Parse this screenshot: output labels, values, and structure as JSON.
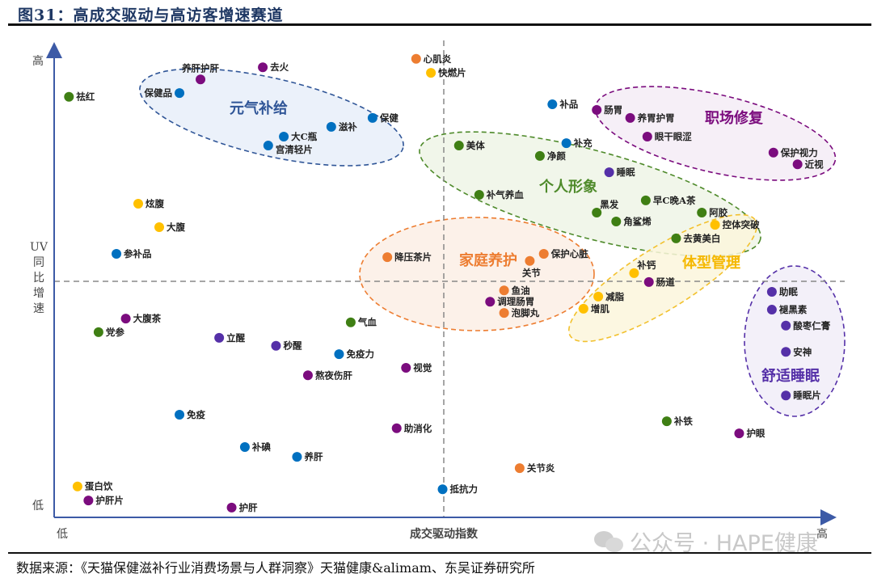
{
  "title": "图31：高成交驱动与高访客增速赛道",
  "source": "数据来源：《天猫保健滋补行业消费场景与人群洞察》天猫健康&alimam、东吴证券研究所",
  "watermark": "公众号 · HAPE健康",
  "chart_data": {
    "type": "scatter",
    "title": "高成交驱动与高访客增速赛道",
    "xlabel": "成交驱动指数",
    "ylabel": "UV同比增速",
    "x_low": "低",
    "x_high": "高",
    "y_low": "低",
    "y_high": "高",
    "xlim": [
      0,
      100
    ],
    "ylim": [
      0,
      100
    ],
    "quadrant_divider": {
      "x": 50,
      "y": 50
    },
    "colors": {
      "blue": "#0070c0",
      "purple": "#7b0c7e",
      "green": "#3f7f14",
      "orange": "#ed7d31",
      "yellow": "#ffc000",
      "indigo": "#5530a8"
    },
    "clusters": [
      {
        "id": "yuanqi",
        "name": "元气补给",
        "color": "#2f5597",
        "fill": "#e8eff9"
      },
      {
        "id": "zhichang",
        "name": "职场修复",
        "color": "#7b0c7e",
        "fill": "#f4ecf6"
      },
      {
        "id": "geren",
        "name": "个人形象",
        "color": "#4e8a2a",
        "fill": "#eef5e6"
      },
      {
        "id": "jiating",
        "name": "家庭养护",
        "color": "#ed7d31",
        "fill": "#fbeee5"
      },
      {
        "id": "tixing",
        "name": "体型管理",
        "color": "#f2c12e",
        "fill": "#fcf6dc"
      },
      {
        "id": "shuimian",
        "name": "舒适睡眠",
        "color": "#5530a8",
        "fill": "#f1edf8"
      }
    ],
    "points": [
      {
        "label": "祛红",
        "x": 1.9,
        "y": 89.7,
        "color": "green",
        "pos": "right"
      },
      {
        "label": "养肝护肝",
        "x": 18.8,
        "y": 93.4,
        "color": "purple",
        "pos": "above"
      },
      {
        "label": "去火",
        "x": 26.8,
        "y": 96.0,
        "color": "purple",
        "pos": "right"
      },
      {
        "label": "保健品",
        "x": 16.1,
        "y": 90.5,
        "color": "blue",
        "pos": "left"
      },
      {
        "label": "大C瓶",
        "x": 29.5,
        "y": 81.2,
        "color": "blue",
        "pos": "right"
      },
      {
        "label": "宫清轻片",
        "x": 27.5,
        "y": 79.3,
        "color": "blue",
        "pos": "right-low"
      },
      {
        "label": "滋补",
        "x": 35.6,
        "y": 83.3,
        "color": "blue",
        "pos": "right"
      },
      {
        "label": "保健",
        "x": 40.9,
        "y": 85.2,
        "color": "blue",
        "pos": "right"
      },
      {
        "label": "心肌炎",
        "x": 46.5,
        "y": 97.8,
        "color": "orange",
        "pos": "right"
      },
      {
        "label": "快燃片",
        "x": 48.4,
        "y": 94.8,
        "color": "yellow",
        "pos": "right"
      },
      {
        "label": "炫腹",
        "x": 10.8,
        "y": 66.9,
        "color": "yellow",
        "pos": "right"
      },
      {
        "label": "大腹",
        "x": 13.5,
        "y": 61.9,
        "color": "yellow",
        "pos": "right"
      },
      {
        "label": "参补品",
        "x": 8.0,
        "y": 56.2,
        "color": "blue",
        "pos": "right"
      },
      {
        "label": "补品",
        "x": 64.0,
        "y": 88.1,
        "color": "blue",
        "pos": "right"
      },
      {
        "label": "肠胃",
        "x": 69.7,
        "y": 86.9,
        "color": "purple",
        "pos": "right"
      },
      {
        "label": "养胃护胃",
        "x": 74.0,
        "y": 85.2,
        "color": "purple",
        "pos": "right"
      },
      {
        "label": "眼干眼涩",
        "x": 76.2,
        "y": 81.2,
        "color": "purple",
        "pos": "right"
      },
      {
        "label": "保护视力",
        "x": 92.4,
        "y": 77.8,
        "color": "purple",
        "pos": "right"
      },
      {
        "label": "近视",
        "x": 95.5,
        "y": 75.3,
        "color": "purple",
        "pos": "right"
      },
      {
        "label": "美体",
        "x": 52.0,
        "y": 79.3,
        "color": "green",
        "pos": "right"
      },
      {
        "label": "净颜",
        "x": 62.4,
        "y": 77.1,
        "color": "green",
        "pos": "right"
      },
      {
        "label": "补充",
        "x": 65.8,
        "y": 79.8,
        "color": "blue",
        "pos": "right"
      },
      {
        "label": "睡眠",
        "x": 71.3,
        "y": 73.6,
        "color": "indigo",
        "pos": "right"
      },
      {
        "label": "补气养血",
        "x": 54.6,
        "y": 68.8,
        "color": "green",
        "pos": "right"
      },
      {
        "label": "黑发",
        "x": 69.7,
        "y": 65.0,
        "color": "green",
        "pos": "above-right"
      },
      {
        "label": "角鲨烯",
        "x": 72.2,
        "y": 63.1,
        "color": "green",
        "pos": "right"
      },
      {
        "label": "早C晚A茶",
        "x": 76.0,
        "y": 67.6,
        "color": "green",
        "pos": "right"
      },
      {
        "label": "阿胶",
        "x": 83.2,
        "y": 65.0,
        "color": "green",
        "pos": "right"
      },
      {
        "label": "控体突破",
        "x": 84.9,
        "y": 62.4,
        "color": "yellow",
        "pos": "right"
      },
      {
        "label": "去黄美白",
        "x": 79.9,
        "y": 59.5,
        "color": "green",
        "pos": "right"
      },
      {
        "label": "降压茶片",
        "x": 42.8,
        "y": 55.5,
        "color": "orange",
        "pos": "right"
      },
      {
        "label": "保护心脏",
        "x": 62.9,
        "y": 56.2,
        "color": "orange",
        "pos": "right"
      },
      {
        "label": "关节",
        "x": 61.1,
        "y": 54.7,
        "color": "orange",
        "pos": "below"
      },
      {
        "label": "补钙",
        "x": 74.5,
        "y": 52.1,
        "color": "yellow",
        "pos": "above-right"
      },
      {
        "label": "肠道",
        "x": 76.4,
        "y": 50.2,
        "color": "purple",
        "pos": "right"
      },
      {
        "label": "鱼油",
        "x": 57.8,
        "y": 48.4,
        "color": "orange",
        "pos": "right"
      },
      {
        "label": "调理肠胃",
        "x": 56.0,
        "y": 46.0,
        "color": "purple",
        "pos": "right"
      },
      {
        "label": "泡脚丸",
        "x": 57.8,
        "y": 43.6,
        "color": "orange",
        "pos": "right"
      },
      {
        "label": "减脂",
        "x": 69.9,
        "y": 47.1,
        "color": "yellow",
        "pos": "right"
      },
      {
        "label": "增肌",
        "x": 68.0,
        "y": 44.5,
        "color": "yellow",
        "pos": "right"
      },
      {
        "label": "助眠",
        "x": 92.2,
        "y": 48.1,
        "color": "indigo",
        "pos": "right"
      },
      {
        "label": "褪黑素",
        "x": 92.2,
        "y": 44.3,
        "color": "indigo",
        "pos": "right"
      },
      {
        "label": "酸枣仁膏",
        "x": 94.0,
        "y": 40.9,
        "color": "indigo",
        "pos": "right"
      },
      {
        "label": "安神",
        "x": 94.0,
        "y": 35.3,
        "color": "indigo",
        "pos": "right"
      },
      {
        "label": "睡眠片",
        "x": 94.0,
        "y": 26.0,
        "color": "indigo",
        "pos": "right"
      },
      {
        "label": "补铁",
        "x": 78.7,
        "y": 20.5,
        "color": "green",
        "pos": "right"
      },
      {
        "label": "护眼",
        "x": 88.0,
        "y": 17.9,
        "color": "purple",
        "pos": "right"
      },
      {
        "label": "大腹茶",
        "x": 9.2,
        "y": 42.4,
        "color": "purple",
        "pos": "right"
      },
      {
        "label": "党参",
        "x": 5.7,
        "y": 39.5,
        "color": "green",
        "pos": "right"
      },
      {
        "label": "立醒",
        "x": 21.2,
        "y": 38.3,
        "color": "indigo",
        "pos": "right"
      },
      {
        "label": "秒醒",
        "x": 28.5,
        "y": 36.6,
        "color": "indigo",
        "pos": "right"
      },
      {
        "label": "气血",
        "x": 38.1,
        "y": 41.6,
        "color": "green",
        "pos": "right"
      },
      {
        "label": "免疫力",
        "x": 36.6,
        "y": 34.8,
        "color": "blue",
        "pos": "right"
      },
      {
        "label": "熬夜伤肝",
        "x": 32.6,
        "y": 30.3,
        "color": "purple",
        "pos": "right"
      },
      {
        "label": "视觉",
        "x": 45.2,
        "y": 31.9,
        "color": "purple",
        "pos": "right"
      },
      {
        "label": "免疫",
        "x": 16.1,
        "y": 21.9,
        "color": "blue",
        "pos": "right"
      },
      {
        "label": "助消化",
        "x": 44.0,
        "y": 19.0,
        "color": "purple",
        "pos": "right"
      },
      {
        "label": "补碘",
        "x": 24.5,
        "y": 15.0,
        "color": "blue",
        "pos": "right"
      },
      {
        "label": "养肝",
        "x": 31.2,
        "y": 12.9,
        "color": "blue",
        "pos": "right"
      },
      {
        "label": "关节炎",
        "x": 59.8,
        "y": 10.5,
        "color": "orange",
        "pos": "right"
      },
      {
        "label": "抵抗力",
        "x": 49.9,
        "y": 6.0,
        "color": "blue",
        "pos": "right"
      },
      {
        "label": "蛋白饮",
        "x": 3.0,
        "y": 6.6,
        "color": "yellow",
        "pos": "right"
      },
      {
        "label": "护肝片",
        "x": 4.4,
        "y": 3.6,
        "color": "purple",
        "pos": "right"
      },
      {
        "label": "护肝",
        "x": 22.8,
        "y": 2.1,
        "color": "purple",
        "pos": "right"
      }
    ]
  }
}
